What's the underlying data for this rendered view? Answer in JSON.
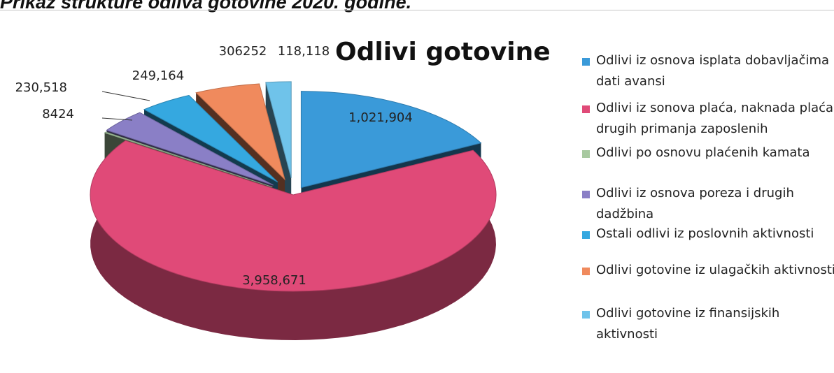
{
  "page": {
    "heading": "Prikaz strukture odliva gotovine 2020. godine."
  },
  "chart_data": {
    "type": "pie",
    "variant": "3d-exploded",
    "title": "Odlivi gotovine",
    "legend_position": "right",
    "series": [
      {
        "name": "Odlivi iz osnova isplata dobavljačima i dati avansi",
        "value": 1021904,
        "label": "1,021,904",
        "color": "#3a9ad9"
      },
      {
        "name": "Odlivi iz sonova plaća, naknada plaća i drugih primanja zaposlenih",
        "value": 3958671,
        "label": "3,958,671",
        "color": "#e04a78"
      },
      {
        "name": "Odlivi po osnovu plaćenih kamata",
        "value": 8424,
        "label": "8424",
        "color": "#a8c9a0"
      },
      {
        "name": "Odlivi iz osnova poreza i drugih dadžbina",
        "value": 230518,
        "label": "230,518",
        "color": "#8a7fc6"
      },
      {
        "name": "Ostali odlivi iz poslovnih aktivnosti",
        "value": 249164,
        "label": "249,164",
        "color": "#35a8e0"
      },
      {
        "name": "Odlivi gotovine iz ulagačkih aktivnosti",
        "value": 306252,
        "label": "306252",
        "color": "#f08a5d"
      },
      {
        "name": "Odlivi gotovine iz finansijskih aktivnosti",
        "value": 118118,
        "label": "118,118",
        "color": "#6fc3ea"
      }
    ]
  }
}
